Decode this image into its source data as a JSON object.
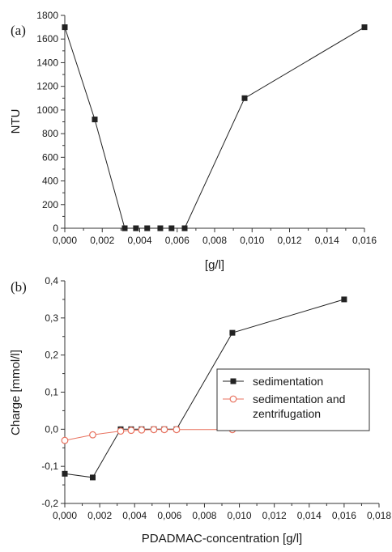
{
  "chart_data": [
    {
      "type": "line",
      "panel_label": "(a)",
      "xlabel": "[g/l]",
      "ylabel": "NTU",
      "xlim": [
        0,
        0.016
      ],
      "ylim": [
        0,
        1800
      ],
      "x_ticks": [
        "0,000",
        "0,002",
        "0,004",
        "0,006",
        "0,008",
        "0,010",
        "0,012",
        "0,014",
        "0,016"
      ],
      "y_ticks": [
        "0",
        "200",
        "400",
        "600",
        "800",
        "1000",
        "1200",
        "1400",
        "1600",
        "1800"
      ],
      "legend": "none",
      "grid": false,
      "series": [
        {
          "color": "#222222",
          "marker": "filled-square",
          "x": [
            0.0,
            0.0016,
            0.0032,
            0.0038,
            0.0044,
            0.0051,
            0.0057,
            0.0064,
            0.0096,
            0.016
          ],
          "y": [
            1700,
            920,
            0,
            0,
            0,
            0,
            0,
            0,
            1100,
            1700
          ]
        }
      ]
    },
    {
      "type": "line",
      "panel_label": "(b)",
      "xlabel": "PDADMAC-concentration [g/l]",
      "ylabel": "Charge [mmol/l]",
      "xlim": [
        0,
        0.018
      ],
      "ylim": [
        -0.2,
        0.4
      ],
      "x_ticks": [
        "0,000",
        "0,002",
        "0,004",
        "0,006",
        "0,008",
        "0,010",
        "0,012",
        "0,014",
        "0,016",
        "0,018"
      ],
      "y_ticks": [
        "-0,2",
        "-0,1",
        "0,0",
        "0,1",
        "0,2",
        "0,3",
        "0,4"
      ],
      "legend": "right",
      "grid": false,
      "series": [
        {
          "name": "sedimentation",
          "color": "#222222",
          "marker": "filled-square",
          "x": [
            0.0,
            0.0016,
            0.0032,
            0.0038,
            0.0044,
            0.0051,
            0.0057,
            0.0064,
            0.0096,
            0.016
          ],
          "y": [
            -0.12,
            -0.13,
            0.0,
            0.0,
            0.0,
            0.0,
            0.0,
            0.0,
            0.26,
            0.35
          ]
        },
        {
          "name": "sedimentation and\nzentrifugation",
          "color": "#e8725f",
          "marker": "open-circle",
          "x": [
            0.0,
            0.0016,
            0.0032,
            0.0038,
            0.0044,
            0.0051,
            0.0057,
            0.0064,
            0.0096,
            0.016
          ],
          "y": [
            -0.03,
            -0.015,
            -0.005,
            -0.003,
            -0.002,
            -0.001,
            -0.001,
            -0.001,
            -0.001,
            0.03
          ]
        }
      ]
    }
  ]
}
